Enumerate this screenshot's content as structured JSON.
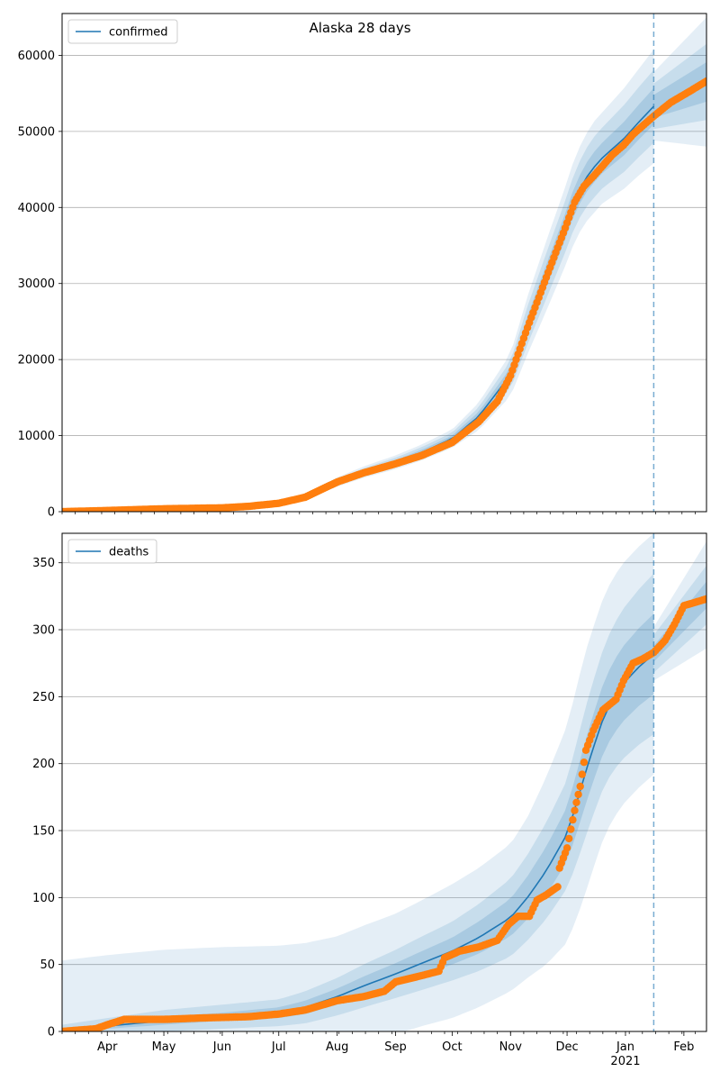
{
  "title": "Alaska 28 days",
  "colors": {
    "model": "#1f77b4",
    "observed": "#ff7f0e",
    "band": "#1f77b4",
    "grid": "#b0b0b0"
  },
  "chart_data": [
    {
      "type": "line",
      "panel": "top",
      "legend": {
        "label": "confirmed",
        "position": "top-left"
      },
      "xlim": [
        "2020-03-08",
        "2021-02-13"
      ],
      "ylim": [
        0,
        65500
      ],
      "yticks": [
        0,
        10000,
        20000,
        30000,
        40000,
        50000,
        60000
      ],
      "xtick_labels": [],
      "forecast_start": "2021-01-16",
      "grid": true,
      "model": {
        "x": [
          "2020-03-08",
          "2020-04-01",
          "2020-05-01",
          "2020-06-01",
          "2020-07-01",
          "2020-07-15",
          "2020-08-01",
          "2020-08-15",
          "2020-09-01",
          "2020-09-15",
          "2020-10-01",
          "2020-10-15",
          "2020-11-01",
          "2020-11-10",
          "2020-11-20",
          "2020-11-30",
          "2020-12-05",
          "2020-12-10",
          "2020-12-15",
          "2020-12-20",
          "2020-12-31",
          "2021-01-08",
          "2021-01-16"
        ],
        "y": [
          0,
          150,
          350,
          500,
          1200,
          2000,
          3900,
          5200,
          6500,
          7800,
          9600,
          12500,
          18000,
          24500,
          31000,
          37500,
          41000,
          43500,
          45200,
          46600,
          49000,
          51200,
          53300
        ],
        "band_inner_halfwidth": [
          0,
          20,
          40,
          60,
          100,
          140,
          200,
          250,
          300,
          350,
          400,
          600,
          900,
          1200,
          1500,
          1700,
          1800,
          1900,
          2000,
          2000,
          2200,
          2300,
          2400
        ],
        "band_mid_halfwidth": [
          0,
          40,
          80,
          120,
          200,
          280,
          400,
          500,
          600,
          700,
          800,
          1200,
          1800,
          2500,
          3000,
          3400,
          3600,
          3800,
          4000,
          4000,
          4400,
          4600,
          4800
        ],
        "band_outer_halfwidth": [
          0,
          60,
          120,
          180,
          300,
          420,
          600,
          750,
          900,
          1050,
          1200,
          1800,
          2800,
          3800,
          4600,
          5200,
          5500,
          5700,
          6000,
          6000,
          6600,
          7000,
          7500
        ]
      },
      "forecast_band": {
        "x": [
          "2021-01-16",
          "2021-02-13"
        ],
        "center": [
          53300,
          56500
        ],
        "inner_halfwidth": [
          1500,
          2600
        ],
        "mid_halfwidth": [
          3000,
          5000
        ],
        "outer_halfwidth": [
          4500,
          8500
        ]
      },
      "observed": {
        "x": [
          "2020-03-08",
          "2020-04-01",
          "2020-05-01",
          "2020-06-01",
          "2020-06-15",
          "2020-07-01",
          "2020-07-15",
          "2020-08-01",
          "2020-08-15",
          "2020-09-01",
          "2020-09-15",
          "2020-10-01",
          "2020-10-15",
          "2020-10-25",
          "2020-11-01",
          "2020-11-10",
          "2020-11-20",
          "2020-11-30",
          "2020-12-05",
          "2020-12-10",
          "2020-12-15",
          "2020-12-20",
          "2020-12-25",
          "2020-12-31",
          "2021-01-05",
          "2021-01-10",
          "2021-01-16",
          "2021-01-25",
          "2021-02-05",
          "2021-02-13"
        ],
        "y": [
          0,
          150,
          380,
          500,
          700,
          1100,
          1900,
          3900,
          5100,
          6300,
          7400,
          9100,
          11800,
          14500,
          17900,
          24200,
          30800,
          37300,
          40700,
          42800,
          44100,
          45500,
          46900,
          48200,
          49600,
          50700,
          52000,
          53800,
          55400,
          56600
        ]
      }
    },
    {
      "type": "line",
      "panel": "bottom",
      "legend": {
        "label": "deaths",
        "position": "top-left"
      },
      "xlim": [
        "2020-03-08",
        "2021-02-13"
      ],
      "ylim": [
        0,
        372
      ],
      "yticks": [
        0,
        50,
        100,
        150,
        200,
        250,
        300,
        350
      ],
      "xtick_labels": [
        "Apr",
        "May",
        "Jun",
        "Jul",
        "Aug",
        "Sep",
        "Oct",
        "Nov",
        "Dec",
        "Jan\n2021",
        "Feb"
      ],
      "xtick_dates": [
        "2020-04-01",
        "2020-05-01",
        "2020-06-01",
        "2020-07-01",
        "2020-08-01",
        "2020-09-01",
        "2020-10-01",
        "2020-11-01",
        "2020-12-01",
        "2021-01-01",
        "2021-02-01"
      ],
      "forecast_start": "2021-01-16",
      "grid": true,
      "model": {
        "x": [
          "2020-03-08",
          "2020-04-01",
          "2020-05-01",
          "2020-06-01",
          "2020-07-01",
          "2020-07-15",
          "2020-08-01",
          "2020-08-15",
          "2020-09-01",
          "2020-09-15",
          "2020-10-01",
          "2020-10-15",
          "2020-11-01",
          "2020-11-10",
          "2020-11-20",
          "2020-11-30",
          "2020-12-05",
          "2020-12-10",
          "2020-12-15",
          "2020-12-20",
          "2020-12-25",
          "2020-12-31",
          "2021-01-08",
          "2021-01-16"
        ],
        "y": [
          0,
          4,
          8,
          11,
          14,
          18,
          26,
          34,
          43,
          51,
          60,
          70,
          85,
          100,
          120,
          145,
          165,
          190,
          212,
          233,
          248,
          260,
          272,
          282
        ],
        "band_inner_halfwidth": [
          1,
          2,
          3,
          3,
          4,
          5,
          6,
          7,
          8,
          9,
          10,
          12,
          14,
          16,
          18,
          20,
          22,
          24,
          25,
          26,
          27,
          28,
          29,
          30
        ],
        "band_mid_halfwidth": [
          5,
          6,
          8,
          9,
          10,
          12,
          14,
          16,
          18,
          20,
          22,
          25,
          29,
          32,
          36,
          40,
          44,
          48,
          50,
          52,
          54,
          56,
          58,
          60
        ],
        "band_outer_halfwidth": [
          53,
          53,
          53,
          52,
          50,
          48,
          45,
          45,
          45,
          47,
          50,
          52,
          55,
          60,
          70,
          80,
          85,
          90,
          90,
          90,
          90,
          90,
          90,
          90
        ]
      },
      "forecast_band": {
        "x": [
          "2021-01-16",
          "2021-02-13"
        ],
        "center": [
          282,
          326
        ],
        "inner_halfwidth": [
          6,
          10
        ],
        "mid_halfwidth": [
          14,
          22
        ],
        "outer_halfwidth": [
          20,
          40
        ]
      },
      "observed": {
        "x": [
          "2020-03-08",
          "2020-03-26",
          "2020-04-01",
          "2020-04-10",
          "2020-05-01",
          "2020-05-20",
          "2020-06-15",
          "2020-07-01",
          "2020-07-15",
          "2020-08-01",
          "2020-08-15",
          "2020-08-26",
          "2020-09-01",
          "2020-09-10",
          "2020-09-24",
          "2020-09-27",
          "2020-10-05",
          "2020-10-15",
          "2020-10-25",
          "2020-10-31",
          "2020-11-05",
          "2020-11-11",
          "2020-11-15",
          "2020-11-20",
          "2020-11-26",
          "2020-11-27",
          "2020-12-01",
          "2020-12-05",
          "2020-12-08",
          "2020-12-11",
          "2020-12-15",
          "2020-12-20",
          "2020-12-27",
          "2020-12-31",
          "2021-01-05",
          "2021-01-10",
          "2021-01-16",
          "2021-01-22",
          "2021-01-27",
          "2021-02-01",
          "2021-02-06",
          "2021-02-13"
        ],
        "y": [
          0,
          2,
          5,
          9,
          9,
          10,
          11,
          13,
          16,
          23,
          26,
          30,
          37,
          40,
          45,
          55,
          60,
          63,
          68,
          80,
          86,
          86,
          98,
          102,
          108,
          122,
          137,
          165,
          183,
          210,
          225,
          240,
          248,
          262,
          275,
          278,
          283,
          292,
          304,
          318,
          320,
          323
        ]
      }
    }
  ]
}
